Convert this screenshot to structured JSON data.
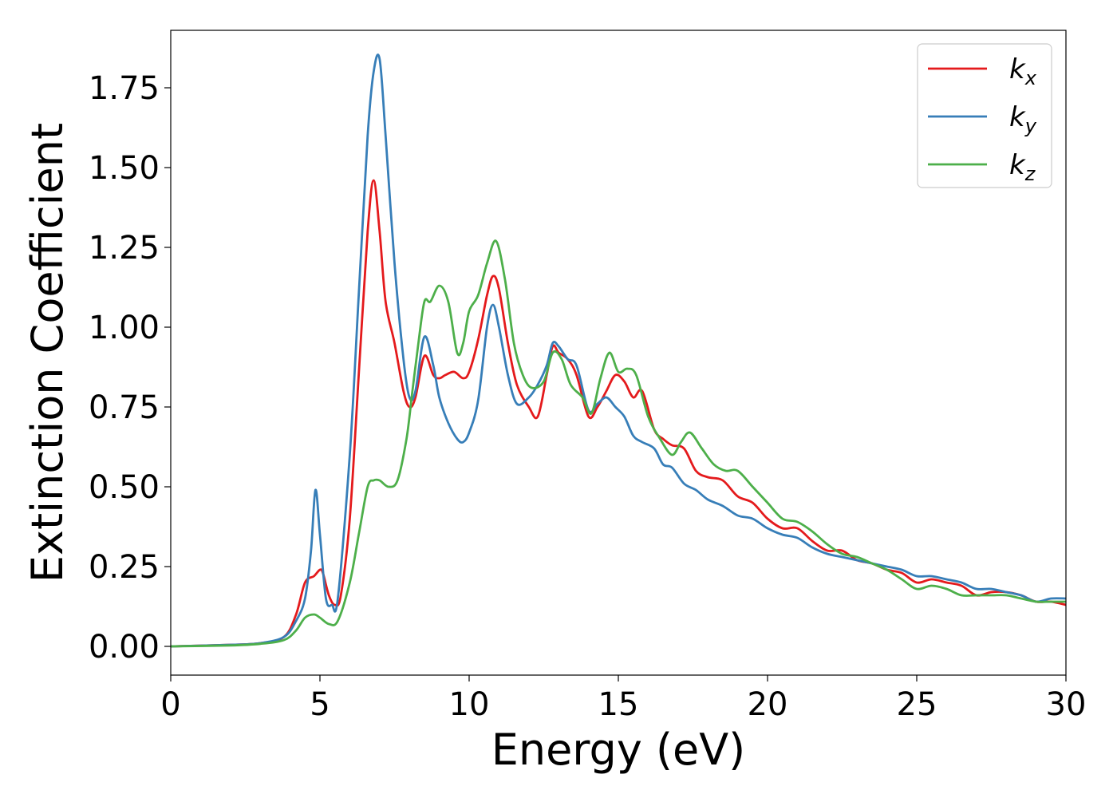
{
  "chart_data": {
    "type": "line",
    "xlabel": "Energy (eV)",
    "ylabel": "Extinction Coefficient",
    "xlim": [
      0,
      30
    ],
    "ylim": [
      -0.09,
      1.93
    ],
    "xticks": [
      "0",
      "5",
      "10",
      "15",
      "20",
      "25",
      "30"
    ],
    "yticks": [
      "0.00",
      "0.25",
      "0.50",
      "0.75",
      "1.00",
      "1.25",
      "1.50",
      "1.75"
    ],
    "grid": false,
    "legend_position": "top-right",
    "series": [
      {
        "name": "k",
        "subscript": "x",
        "color": "#e41a1c",
        "x": [
          0,
          2,
          3,
          3.8,
          4.2,
          4.5,
          4.8,
          5.0,
          5.1,
          5.3,
          5.5,
          5.7,
          6.0,
          6.3,
          6.6,
          6.8,
          7.0,
          7.2,
          7.5,
          7.8,
          8.0,
          8.2,
          8.5,
          8.8,
          9.0,
          9.2,
          9.5,
          9.8,
          10.0,
          10.3,
          10.6,
          10.8,
          11.0,
          11.3,
          11.6,
          12.0,
          12.3,
          12.6,
          12.8,
          13.0,
          13.3,
          13.6,
          14.0,
          14.3,
          14.6,
          14.9,
          15.2,
          15.5,
          15.8,
          16.2,
          16.5,
          16.8,
          17.2,
          17.6,
          18.0,
          18.5,
          19.0,
          19.5,
          20.0,
          20.5,
          21.0,
          21.5,
          22.0,
          22.5,
          23.0,
          23.5,
          24.0,
          24.5,
          25.0,
          25.5,
          26.0,
          26.5,
          27.0,
          27.5,
          28.0,
          28.5,
          29.0,
          29.5,
          30.0
        ],
        "values": [
          0,
          0.005,
          0.01,
          0.03,
          0.1,
          0.2,
          0.22,
          0.24,
          0.23,
          0.16,
          0.13,
          0.16,
          0.4,
          0.85,
          1.3,
          1.46,
          1.3,
          1.08,
          0.95,
          0.8,
          0.75,
          0.78,
          0.91,
          0.85,
          0.84,
          0.85,
          0.86,
          0.84,
          0.86,
          0.96,
          1.1,
          1.16,
          1.12,
          0.95,
          0.82,
          0.75,
          0.72,
          0.85,
          0.94,
          0.92,
          0.9,
          0.85,
          0.72,
          0.75,
          0.8,
          0.85,
          0.83,
          0.78,
          0.8,
          0.68,
          0.65,
          0.63,
          0.62,
          0.55,
          0.53,
          0.52,
          0.47,
          0.45,
          0.4,
          0.37,
          0.37,
          0.33,
          0.3,
          0.3,
          0.27,
          0.26,
          0.24,
          0.23,
          0.2,
          0.21,
          0.2,
          0.19,
          0.16,
          0.17,
          0.17,
          0.16,
          0.14,
          0.14,
          0.13
        ]
      },
      {
        "name": "k",
        "subscript": "y",
        "color": "#377eb8",
        "x": [
          0,
          2,
          3,
          3.8,
          4.2,
          4.5,
          4.7,
          4.85,
          5.0,
          5.2,
          5.4,
          5.6,
          6.0,
          6.3,
          6.6,
          6.8,
          7.0,
          7.2,
          7.5,
          7.8,
          8.0,
          8.2,
          8.5,
          8.8,
          9.0,
          9.3,
          9.6,
          9.8,
          10.0,
          10.3,
          10.6,
          10.8,
          11.0,
          11.3,
          11.6,
          12.0,
          12.3,
          12.6,
          12.8,
          13.0,
          13.3,
          13.6,
          14.0,
          14.3,
          14.6,
          14.9,
          15.2,
          15.5,
          15.8,
          16.2,
          16.5,
          16.8,
          17.2,
          17.6,
          18.0,
          18.5,
          19.0,
          19.5,
          20.0,
          20.5,
          21.0,
          21.5,
          22.0,
          22.5,
          23.0,
          23.5,
          24.0,
          24.5,
          25.0,
          25.5,
          26.0,
          26.5,
          27.0,
          27.5,
          28.0,
          28.5,
          29.0,
          29.5,
          30.0
        ],
        "values": [
          0,
          0.005,
          0.01,
          0.03,
          0.08,
          0.15,
          0.3,
          0.49,
          0.35,
          0.15,
          0.13,
          0.15,
          0.6,
          1.1,
          1.6,
          1.8,
          1.84,
          1.6,
          1.2,
          0.9,
          0.78,
          0.8,
          0.97,
          0.88,
          0.78,
          0.7,
          0.65,
          0.64,
          0.67,
          0.77,
          1.0,
          1.07,
          1.0,
          0.85,
          0.76,
          0.78,
          0.82,
          0.88,
          0.95,
          0.94,
          0.9,
          0.88,
          0.74,
          0.76,
          0.78,
          0.75,
          0.72,
          0.66,
          0.64,
          0.62,
          0.57,
          0.56,
          0.51,
          0.49,
          0.46,
          0.44,
          0.41,
          0.4,
          0.37,
          0.35,
          0.34,
          0.31,
          0.29,
          0.28,
          0.27,
          0.26,
          0.25,
          0.24,
          0.22,
          0.22,
          0.21,
          0.2,
          0.18,
          0.18,
          0.17,
          0.16,
          0.14,
          0.15,
          0.15
        ]
      },
      {
        "name": "k",
        "subscript": "z",
        "color": "#4daf4a",
        "x": [
          0,
          2,
          3,
          3.8,
          4.2,
          4.5,
          4.8,
          5.0,
          5.3,
          5.6,
          6.0,
          6.3,
          6.6,
          6.8,
          7.0,
          7.3,
          7.6,
          7.9,
          8.1,
          8.3,
          8.5,
          8.7,
          9.0,
          9.3,
          9.6,
          9.8,
          10.0,
          10.3,
          10.6,
          10.9,
          11.2,
          11.5,
          11.8,
          12.1,
          12.5,
          12.8,
          13.1,
          13.4,
          13.8,
          14.1,
          14.4,
          14.7,
          15.0,
          15.3,
          15.6,
          16.0,
          16.4,
          16.8,
          17.1,
          17.4,
          17.8,
          18.2,
          18.6,
          19.0,
          19.5,
          20.0,
          20.5,
          21.0,
          21.5,
          22.0,
          22.5,
          23.0,
          23.5,
          24.0,
          24.5,
          25.0,
          25.5,
          26.0,
          26.5,
          27.0,
          27.5,
          28.0,
          28.5,
          29.0,
          29.5,
          30.0
        ],
        "values": [
          0,
          0.003,
          0.008,
          0.02,
          0.05,
          0.09,
          0.1,
          0.09,
          0.07,
          0.08,
          0.2,
          0.35,
          0.5,
          0.52,
          0.52,
          0.5,
          0.52,
          0.65,
          0.8,
          0.95,
          1.08,
          1.08,
          1.13,
          1.08,
          0.92,
          0.95,
          1.05,
          1.1,
          1.2,
          1.27,
          1.15,
          0.95,
          0.85,
          0.81,
          0.83,
          0.92,
          0.9,
          0.82,
          0.78,
          0.73,
          0.84,
          0.92,
          0.86,
          0.87,
          0.85,
          0.72,
          0.65,
          0.6,
          0.64,
          0.67,
          0.62,
          0.57,
          0.55,
          0.55,
          0.5,
          0.45,
          0.4,
          0.39,
          0.36,
          0.32,
          0.29,
          0.28,
          0.26,
          0.24,
          0.21,
          0.18,
          0.19,
          0.18,
          0.16,
          0.16,
          0.16,
          0.16,
          0.15,
          0.14,
          0.14,
          0.14
        ]
      }
    ]
  }
}
